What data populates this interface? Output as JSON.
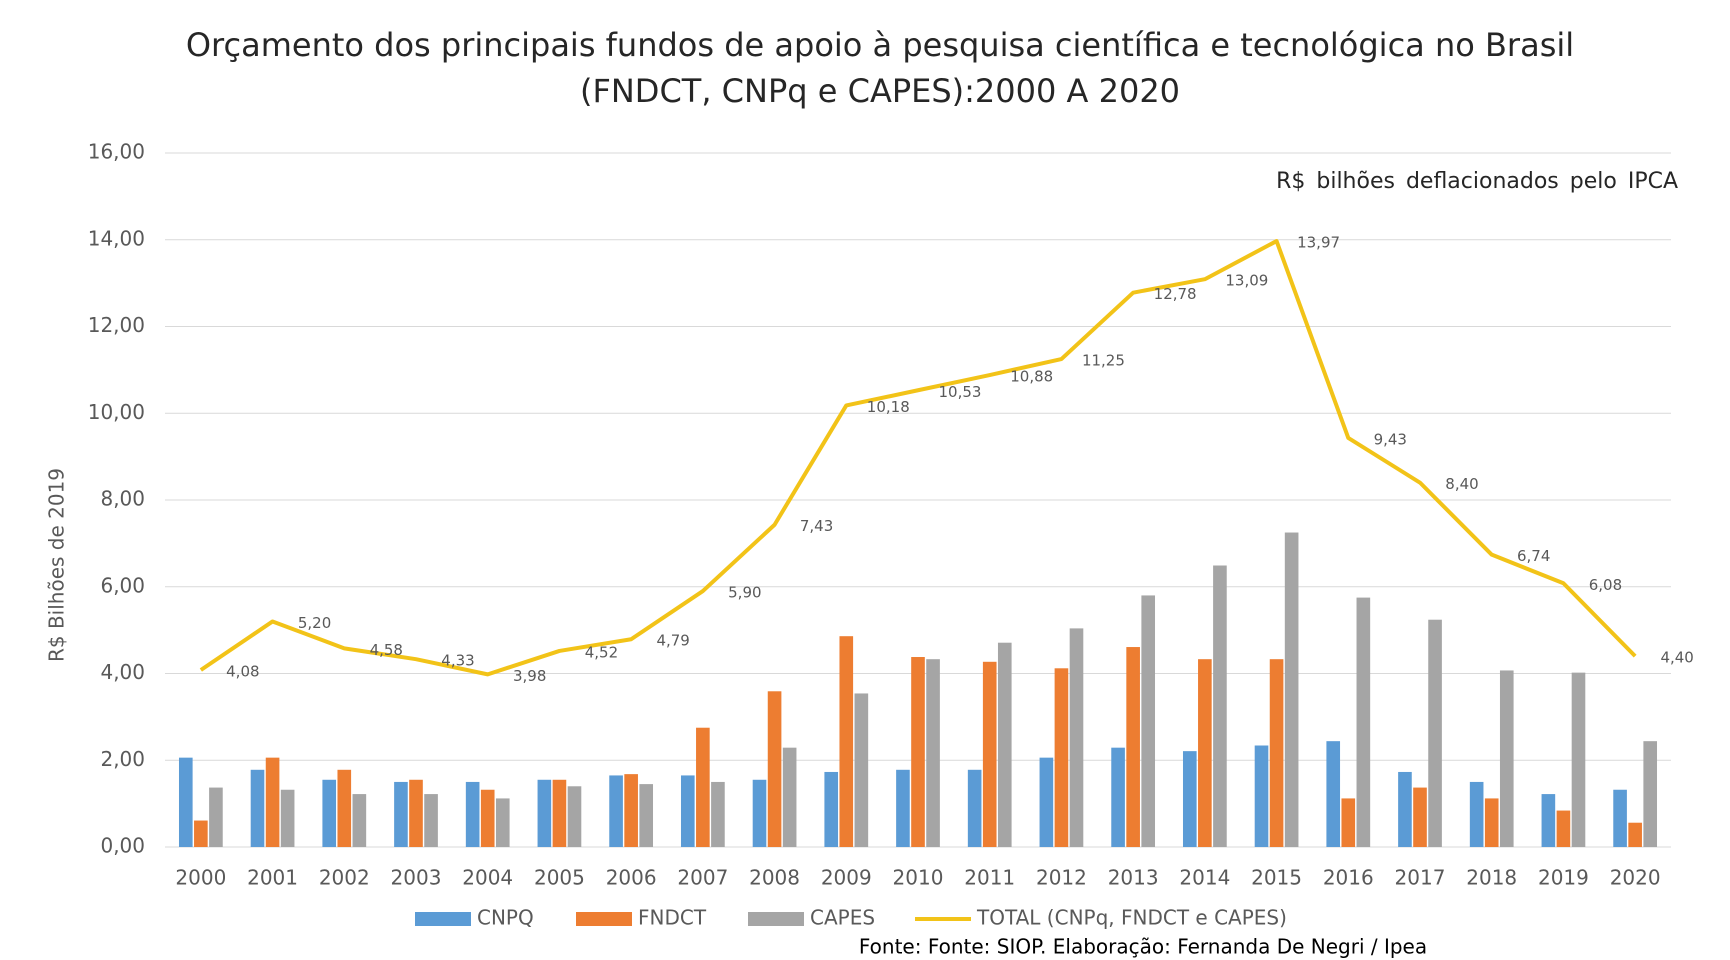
{
  "chart_data": {
    "type": "bar",
    "title": [
      "Orçamento dos principais fundos de apoio à pesquisa científica e tecnológica no Brasil",
      "(FNDCT, CNPq e CAPES):2000 A 2020"
    ],
    "annotation": "R$ bilhões deflacionados pelo IPCA",
    "y_label": "R$ Bilhões de 2019",
    "source": "Fonte: Fonte: SIOP. Elaboração: Fernanda De Negri / Ipea",
    "categories": [
      "2000",
      "2001",
      "2002",
      "2003",
      "2004",
      "2005",
      "2006",
      "2007",
      "2008",
      "2009",
      "2010",
      "2011",
      "2012",
      "2013",
      "2014",
      "2015",
      "2016",
      "2017",
      "2018",
      "2019",
      "2020"
    ],
    "series": [
      {
        "name": "CNPQ",
        "type": "bar",
        "color": "#5b9bd5",
        "values": [
          2.06,
          1.78,
          1.55,
          1.5,
          1.5,
          1.55,
          1.65,
          1.65,
          1.55,
          1.73,
          1.78,
          1.78,
          2.06,
          2.29,
          2.21,
          2.34,
          2.44,
          1.73,
          1.5,
          1.22,
          1.32
        ]
      },
      {
        "name": "FNDCT",
        "type": "bar",
        "color": "#ed7d31",
        "values": [
          0.61,
          2.06,
          1.78,
          1.55,
          1.32,
          1.55,
          1.68,
          2.75,
          3.59,
          4.86,
          4.38,
          4.27,
          4.12,
          4.61,
          4.33,
          4.33,
          1.12,
          1.37,
          1.12,
          0.84,
          0.56
        ]
      },
      {
        "name": "CAPES",
        "type": "bar",
        "color": "#a5a5a5",
        "values": [
          1.37,
          1.32,
          1.22,
          1.22,
          1.12,
          1.4,
          1.45,
          1.5,
          2.29,
          3.54,
          4.33,
          4.71,
          5.04,
          5.8,
          6.49,
          7.25,
          5.75,
          5.24,
          4.07,
          4.02,
          2.44
        ]
      },
      {
        "name": "TOTAL (CNPq, FNDCT e CAPES)",
        "type": "line",
        "color": "#f2c318",
        "values": [
          4.08,
          5.2,
          4.58,
          4.33,
          3.98,
          4.52,
          4.79,
          5.9,
          7.43,
          10.18,
          10.53,
          10.88,
          11.25,
          12.78,
          13.09,
          13.97,
          9.43,
          8.4,
          6.74,
          6.08,
          4.4
        ],
        "value_labels": [
          "4,08",
          "5,20",
          "4,58",
          "4,33",
          "3,98",
          "4,52",
          "4,79",
          "5,90",
          "7,43",
          "10,18",
          "10,53",
          "10,88",
          "11,25",
          "12,78",
          "13,09",
          "13,97",
          "9,43",
          "8,40",
          "6,74",
          "6,08",
          "4,40"
        ]
      }
    ],
    "ylim": [
      0,
      16
    ],
    "yticks": [
      {
        "value": 0,
        "label": "0,00"
      },
      {
        "value": 2,
        "label": "2,00"
      },
      {
        "value": 4,
        "label": "4,00"
      },
      {
        "value": 6,
        "label": "6,00"
      },
      {
        "value": 8,
        "label": "8,00"
      },
      {
        "value": 10,
        "label": "10,00"
      },
      {
        "value": 12,
        "label": "12,00"
      },
      {
        "value": 14,
        "label": "14,00"
      },
      {
        "value": 16,
        "label": "16,00"
      }
    ],
    "grid": true,
    "legend": "bottom"
  }
}
